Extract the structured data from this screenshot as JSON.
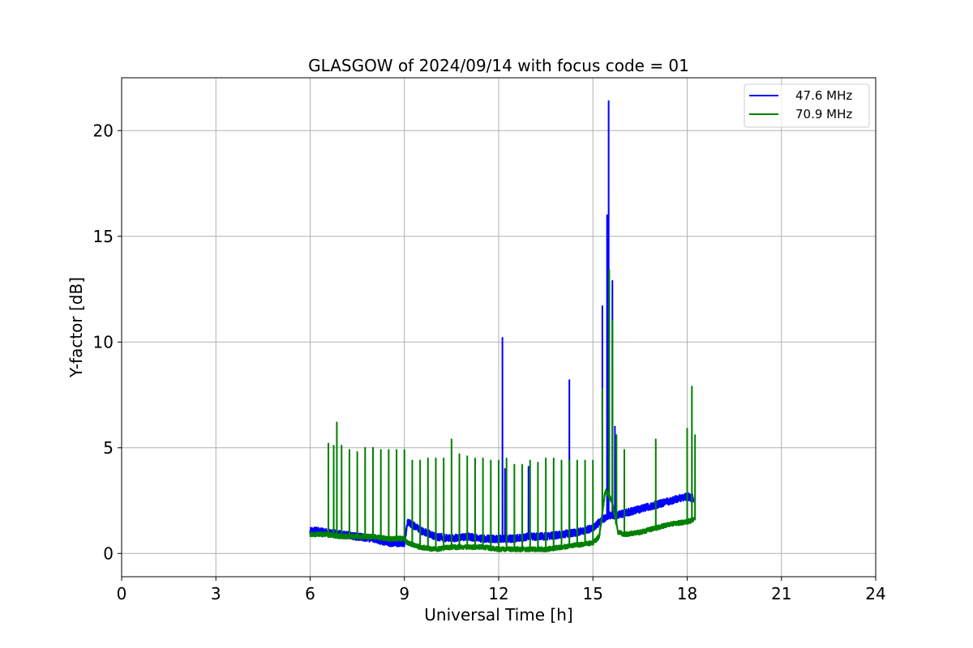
{
  "chart_data": {
    "type": "line",
    "title": "GLASGOW of 2024/09/14 with focus code = 01",
    "xlabel": "Universal Time [h]",
    "ylabel": "Y-factor [dB]",
    "xlim": [
      0,
      24
    ],
    "ylim": [
      -1.1,
      22.5
    ],
    "xticks": [
      0,
      3,
      6,
      9,
      12,
      15,
      18,
      21,
      24
    ],
    "yticks": [
      0,
      5,
      10,
      15,
      20
    ],
    "grid": true,
    "legend_position": "top-right",
    "series": [
      {
        "name": "47.6 MHz",
        "color": "#0000ff",
        "base": [
          [
            6.0,
            1.1
          ],
          [
            6.5,
            1.0
          ],
          [
            7.0,
            0.9
          ],
          [
            7.5,
            0.8
          ],
          [
            8.0,
            0.7
          ],
          [
            8.5,
            0.5
          ],
          [
            9.0,
            0.5
          ],
          [
            9.1,
            1.5
          ],
          [
            9.5,
            1.1
          ],
          [
            10.0,
            0.8
          ],
          [
            10.5,
            0.7
          ],
          [
            11.0,
            0.8
          ],
          [
            11.5,
            0.7
          ],
          [
            12.0,
            0.7
          ],
          [
            12.5,
            0.7
          ],
          [
            13.0,
            0.8
          ],
          [
            13.5,
            0.8
          ],
          [
            14.0,
            0.9
          ],
          [
            14.5,
            1.0
          ],
          [
            15.0,
            1.2
          ],
          [
            15.3,
            1.6
          ],
          [
            15.5,
            1.8
          ],
          [
            15.7,
            1.8
          ],
          [
            16.0,
            1.9
          ],
          [
            16.5,
            2.1
          ],
          [
            17.0,
            2.3
          ],
          [
            17.5,
            2.5
          ],
          [
            18.0,
            2.7
          ],
          [
            18.2,
            2.6
          ]
        ],
        "spikes": [
          [
            12.12,
            10.2
          ],
          [
            12.2,
            4.0
          ],
          [
            12.95,
            4.1
          ],
          [
            14.25,
            8.2
          ],
          [
            15.3,
            11.7
          ],
          [
            15.45,
            16.0
          ],
          [
            15.5,
            21.4
          ],
          [
            15.62,
            12.9
          ],
          [
            15.7,
            6.0
          ]
        ]
      },
      {
        "name": "70.9 MHz",
        "color": "#008000",
        "base": [
          [
            6.0,
            0.9
          ],
          [
            6.5,
            0.9
          ],
          [
            7.0,
            0.8
          ],
          [
            7.5,
            0.8
          ],
          [
            8.0,
            0.8
          ],
          [
            8.5,
            0.7
          ],
          [
            9.0,
            0.7
          ],
          [
            9.1,
            0.5
          ],
          [
            9.5,
            0.3
          ],
          [
            10.0,
            0.2
          ],
          [
            10.5,
            0.3
          ],
          [
            11.0,
            0.3
          ],
          [
            11.5,
            0.3
          ],
          [
            12.0,
            0.2
          ],
          [
            12.5,
            0.2
          ],
          [
            13.0,
            0.2
          ],
          [
            13.5,
            0.2
          ],
          [
            14.0,
            0.3
          ],
          [
            14.5,
            0.4
          ],
          [
            15.0,
            0.5
          ],
          [
            15.2,
            0.8
          ],
          [
            15.4,
            3.0
          ],
          [
            15.6,
            2.5
          ],
          [
            15.8,
            1.0
          ],
          [
            16.0,
            0.9
          ],
          [
            16.5,
            1.0
          ],
          [
            17.0,
            1.2
          ],
          [
            17.5,
            1.4
          ],
          [
            18.0,
            1.5
          ],
          [
            18.2,
            1.6
          ]
        ],
        "spikes": [
          [
            6.58,
            5.2
          ],
          [
            6.75,
            5.1
          ],
          [
            6.85,
            6.2
          ],
          [
            7.0,
            5.1
          ],
          [
            7.25,
            4.9
          ],
          [
            7.5,
            4.8
          ],
          [
            7.75,
            5.0
          ],
          [
            8.0,
            5.0
          ],
          [
            8.25,
            4.9
          ],
          [
            8.5,
            4.9
          ],
          [
            8.75,
            4.9
          ],
          [
            9.0,
            4.9
          ],
          [
            9.25,
            4.4
          ],
          [
            9.5,
            4.4
          ],
          [
            9.75,
            4.5
          ],
          [
            10.0,
            4.5
          ],
          [
            10.25,
            4.5
          ],
          [
            10.5,
            5.4
          ],
          [
            10.75,
            4.7
          ],
          [
            11.0,
            4.6
          ],
          [
            11.25,
            4.5
          ],
          [
            11.5,
            4.5
          ],
          [
            11.75,
            4.4
          ],
          [
            12.0,
            4.4
          ],
          [
            12.25,
            4.5
          ],
          [
            12.5,
            4.2
          ],
          [
            12.75,
            4.2
          ],
          [
            13.0,
            4.4
          ],
          [
            13.25,
            4.3
          ],
          [
            13.5,
            4.5
          ],
          [
            13.75,
            4.5
          ],
          [
            14.0,
            4.4
          ],
          [
            14.25,
            4.4
          ],
          [
            14.5,
            4.4
          ],
          [
            14.75,
            4.4
          ],
          [
            15.0,
            4.4
          ],
          [
            15.3,
            7.8
          ],
          [
            15.52,
            13.4
          ],
          [
            15.62,
            11.0
          ],
          [
            15.75,
            5.6
          ],
          [
            16.0,
            4.9
          ],
          [
            17.0,
            5.4
          ],
          [
            18.0,
            5.9
          ],
          [
            18.15,
            7.9
          ],
          [
            18.25,
            5.6
          ]
        ]
      }
    ]
  }
}
